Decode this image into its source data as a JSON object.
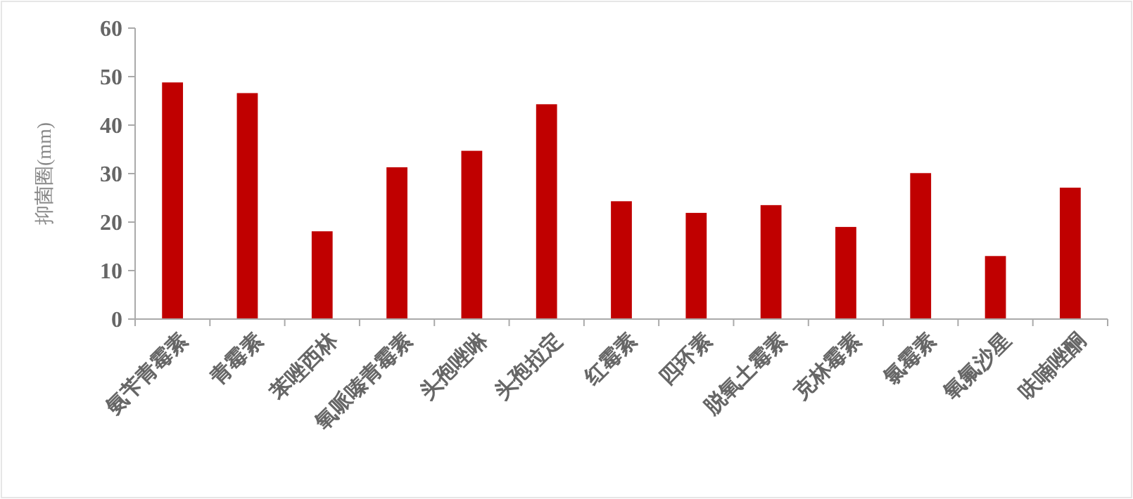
{
  "chart_data": {
    "type": "bar",
    "ylabel": "抑菌圈(mm)",
    "categories": [
      "氨苄青霉素",
      "青霉素",
      "苯唑西林",
      "氧哌嗪青霉素",
      "头孢唑啉",
      "头孢拉定",
      "红霉素",
      "四环素",
      "脱氧土霉素",
      "克林霉素",
      "氯霉素",
      "氧氟沙星",
      "呋喃唑酮"
    ],
    "values": [
      48.8,
      46.6,
      18.1,
      31.3,
      34.7,
      44.3,
      24.3,
      21.9,
      23.5,
      19,
      30.1,
      13,
      27.1
    ],
    "color": "#c00000",
    "ylim": [
      0,
      60
    ],
    "yticks": [
      0,
      10,
      20,
      30,
      40,
      50,
      60
    ],
    "grid": false
  }
}
